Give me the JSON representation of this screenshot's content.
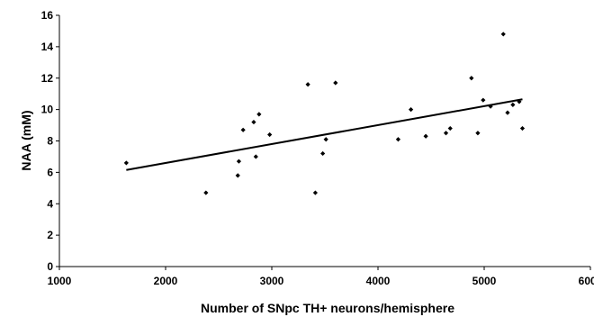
{
  "chart_data": {
    "type": "scatter",
    "title": "",
    "xlabel": "Number of SNpc TH+ neurons/hemisphere",
    "ylabel": "NAA (mM)",
    "xlim": [
      1000,
      6000
    ],
    "ylim": [
      0,
      16
    ],
    "xticks": [
      1000,
      2000,
      3000,
      4000,
      5000,
      6000
    ],
    "yticks": [
      0,
      2,
      4,
      6,
      8,
      10,
      12,
      14,
      16
    ],
    "grid": false,
    "legend": "none",
    "marker_color": "#000000",
    "series": [
      {
        "points": [
          [
            1630,
            6.6
          ],
          [
            2380,
            4.7
          ],
          [
            2680,
            5.8
          ],
          [
            2690,
            6.7
          ],
          [
            2730,
            8.7
          ],
          [
            2830,
            9.2
          ],
          [
            2850,
            7.0
          ],
          [
            2880,
            9.7
          ],
          [
            2980,
            8.4
          ],
          [
            3340,
            11.6
          ],
          [
            3410,
            4.7
          ],
          [
            3480,
            7.2
          ],
          [
            3510,
            8.1
          ],
          [
            3600,
            11.7
          ],
          [
            4190,
            8.1
          ],
          [
            4310,
            10.0
          ],
          [
            4450,
            8.3
          ],
          [
            4640,
            8.5
          ],
          [
            4680,
            8.8
          ],
          [
            4880,
            12.0
          ],
          [
            4940,
            8.5
          ],
          [
            4990,
            10.6
          ],
          [
            5060,
            10.2
          ],
          [
            5180,
            14.8
          ],
          [
            5220,
            9.8
          ],
          [
            5270,
            10.3
          ],
          [
            5330,
            10.5
          ],
          [
            5360,
            8.8
          ]
        ]
      }
    ],
    "trendline": {
      "x_start": 1630,
      "y_start": 6.15,
      "x_end": 5360,
      "y_end": 10.65
    }
  }
}
